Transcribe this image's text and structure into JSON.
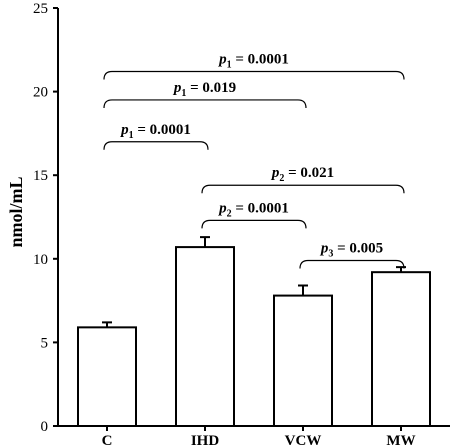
{
  "chart_data": {
    "type": "bar",
    "title": "",
    "xlabel": "",
    "ylabel": "nmol/mL",
    "ylim": [
      0,
      25
    ],
    "yticks": [
      0,
      5,
      10,
      15,
      20,
      25
    ],
    "grid": false,
    "categories": [
      "C",
      "IHD",
      "VCW",
      "MW"
    ],
    "values": [
      5.9,
      10.7,
      7.8,
      9.2
    ],
    "errors": [
      0.3,
      0.6,
      0.6,
      0.3
    ],
    "annotations": [
      {
        "from": 0,
        "to": 1,
        "y": 17.0,
        "sym": "p",
        "sub": "1",
        "value": " = 0.0001"
      },
      {
        "from": 0,
        "to": 2,
        "y": 19.5,
        "sym": "p",
        "sub": "1",
        "value": " = 0.019"
      },
      {
        "from": 0,
        "to": 3,
        "y": 21.2,
        "sym": "p",
        "sub": "1",
        "value": " = 0.0001"
      },
      {
        "from": 1,
        "to": 2,
        "y": 12.3,
        "sym": "p",
        "sub": "2",
        "value": " = 0.0001"
      },
      {
        "from": 1,
        "to": 3,
        "y": 14.4,
        "sym": "p",
        "sub": "2",
        "value": " = 0.021"
      },
      {
        "from": 2,
        "to": 3,
        "y": 9.9,
        "sym": "p",
        "sub": "3",
        "value": " = 0.005"
      }
    ]
  }
}
